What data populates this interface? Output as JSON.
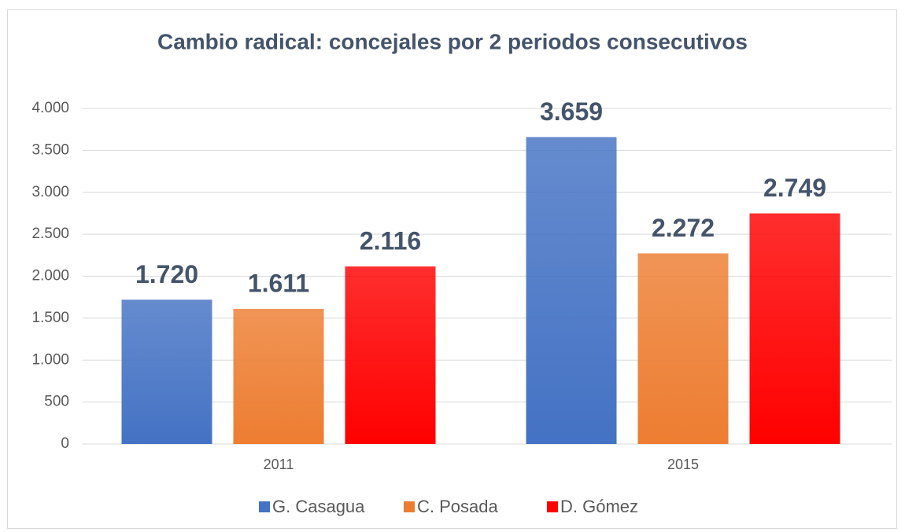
{
  "chart_data": {
    "type": "bar",
    "title": "Cambio radical: concejales por 2 periodos consecutivos",
    "categories": [
      "2011",
      "2015"
    ],
    "series": [
      {
        "name": "G. Casagua",
        "color": "#4472c4",
        "values": [
          1720,
          3659
        ],
        "value_labels": [
          "1.720",
          "3.659"
        ]
      },
      {
        "name": "C. Posada",
        "color": "#ed7d31",
        "values": [
          1611,
          2272
        ],
        "value_labels": [
          "1.611",
          "2.272"
        ]
      },
      {
        "name": "D. Gómez",
        "color": "#ff0000",
        "values": [
          2116,
          2749
        ],
        "value_labels": [
          "2.116",
          "2.749"
        ]
      }
    ],
    "ylim": [
      0,
      4000
    ],
    "yticks": [
      0,
      500,
      {
        "value": 1000,
        "label": "1.000"
      },
      {
        "value": 1500,
        "label": "1.500"
      },
      {
        "value": 2000,
        "label": "2.000"
      },
      {
        "value": 2500,
        "label": "2.500"
      },
      {
        "value": 3000,
        "label": "3.000"
      },
      {
        "value": 3500,
        "label": "3.500"
      },
      {
        "value": 4000,
        "label": "4.000"
      }
    ],
    "grid": true,
    "legend": "bottom"
  }
}
